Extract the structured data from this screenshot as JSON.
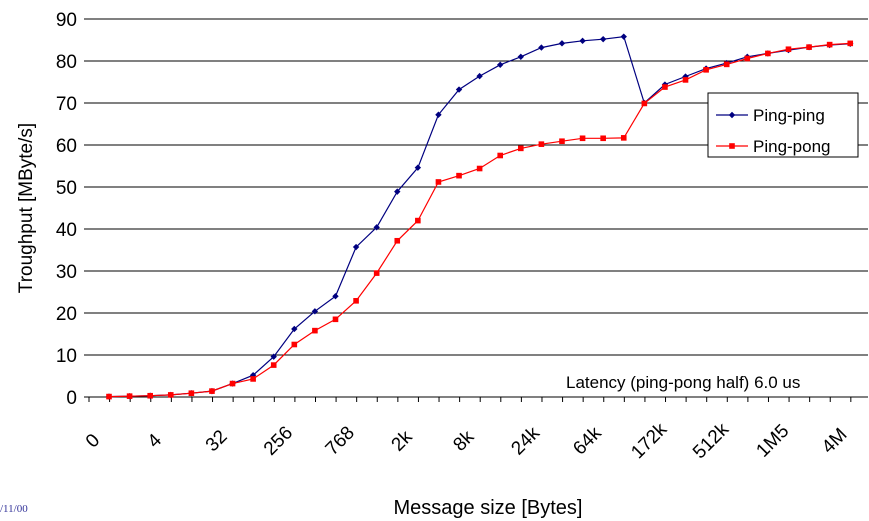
{
  "chart_data": {
    "type": "line",
    "ylabel": "Troughput [MByte/s]",
    "xlabel": "Message size [Bytes]",
    "ylim": [
      0,
      90
    ],
    "yticks": [
      0,
      10,
      20,
      30,
      40,
      50,
      60,
      70,
      80,
      90
    ],
    "grid": "horizontal",
    "legend_position": "right",
    "annotation": "Latency (ping-pong half) 6.0 us",
    "x_tick_labels": [
      "0",
      "4",
      "32",
      "256",
      "768",
      "2k",
      "8k",
      "24k",
      "64k",
      "172k",
      "512k",
      "1M5",
      "4M"
    ],
    "series": [
      {
        "name": "Ping-ping",
        "color": "#000080",
        "marker": "diamond",
        "values": [
          0.1,
          0.2,
          0.3,
          0.5,
          0.9,
          1.4,
          3.2,
          5.2,
          9.6,
          16.2,
          20.4,
          24.0,
          35.7,
          40.4,
          48.9,
          54.6,
          67.2,
          73.2,
          76.4,
          79.1,
          81.0,
          83.2,
          84.2,
          84.8,
          85.2,
          85.8,
          70.0,
          74.4,
          76.3,
          78.2,
          79.5,
          81.0,
          81.8,
          82.6,
          83.3,
          83.8,
          84.1
        ]
      },
      {
        "name": "Ping-pong",
        "color": "#ff0000",
        "marker": "square",
        "values": [
          0.1,
          0.2,
          0.3,
          0.5,
          0.9,
          1.4,
          3.2,
          4.3,
          7.6,
          12.5,
          15.8,
          18.5,
          22.9,
          29.5,
          37.2,
          42.0,
          51.2,
          52.7,
          54.4,
          57.5,
          59.2,
          60.2,
          60.9,
          61.6,
          61.6,
          61.7,
          69.9,
          73.8,
          75.5,
          77.9,
          79.2,
          80.6,
          81.8,
          82.8,
          83.3,
          83.9,
          84.2
        ]
      }
    ]
  },
  "footer": {
    "date": "/11/00"
  }
}
